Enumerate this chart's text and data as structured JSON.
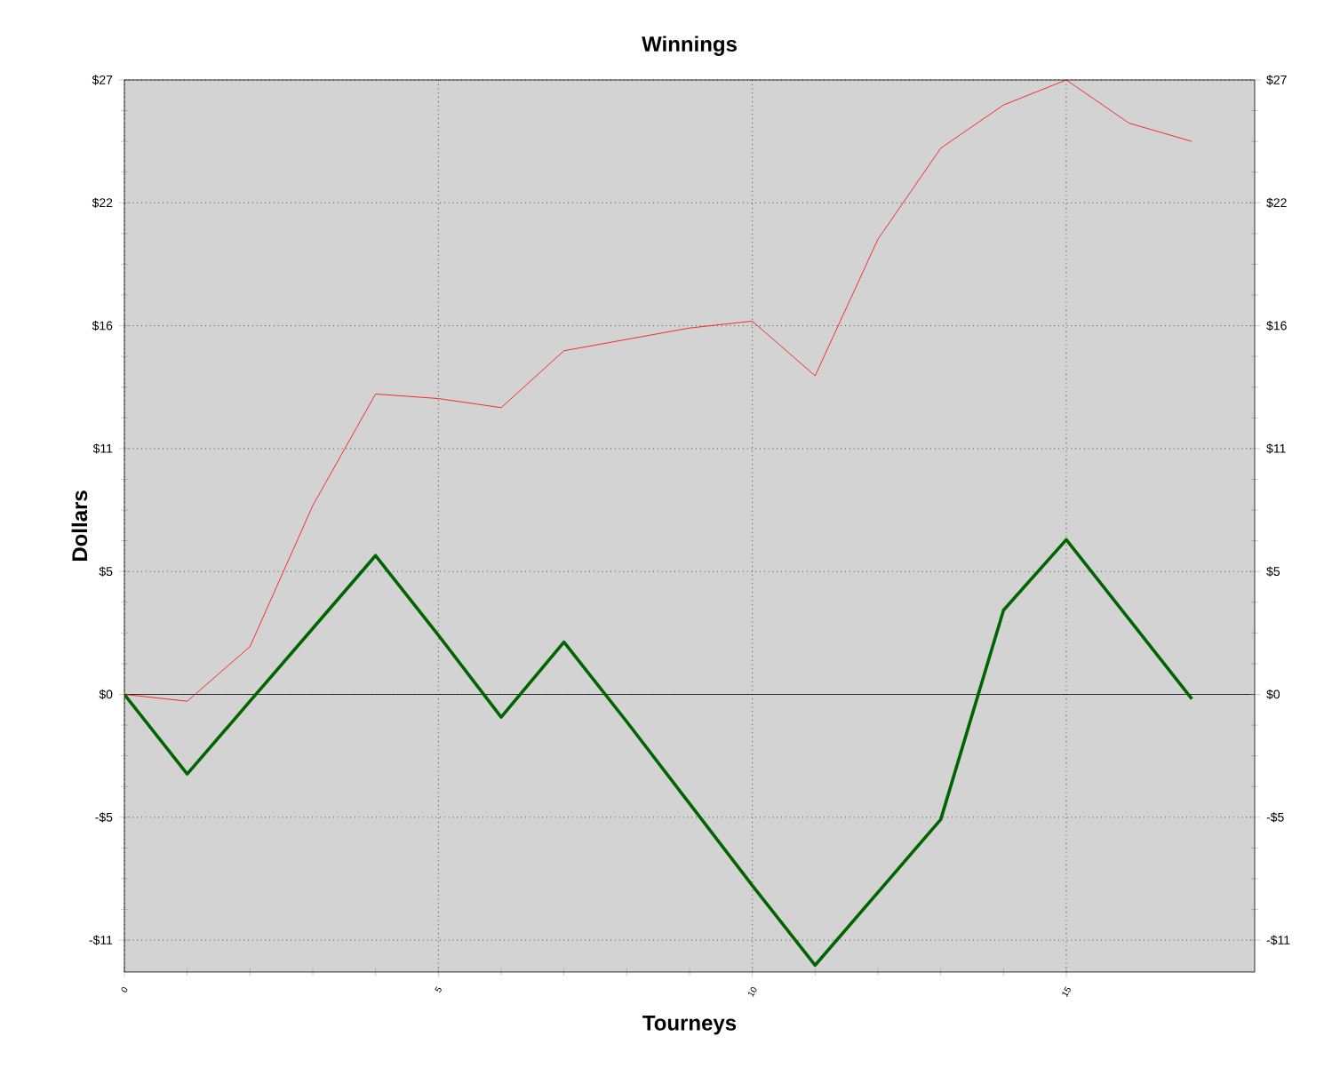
{
  "chart_data": {
    "type": "line",
    "title": "Winnings",
    "xlabel": "Tourneys",
    "ylabel": "Dollars",
    "x": [
      0,
      1,
      2,
      3,
      4,
      5,
      6,
      7,
      8,
      9,
      10,
      11,
      12,
      13,
      14,
      15,
      16,
      17
    ],
    "series": [
      {
        "color": "#ff0000",
        "values": [
          0,
          -0.3,
          2.1,
          8.3,
          13.2,
          13.0,
          12.6,
          15.1,
          15.6,
          16.1,
          16.4,
          14.0,
          20.0,
          24.0,
          25.9,
          27.0,
          25.1,
          24.3
        ]
      },
      {
        "color": "#006400",
        "values": [
          0,
          -3.5,
          -0.3,
          2.9,
          6.1,
          2.6,
          -1.0,
          2.3,
          -1.2,
          -4.8,
          -8.4,
          -11.9,
          -8.7,
          -5.5,
          3.7,
          6.8,
          3.3,
          -0.2
        ]
      }
    ],
    "xlim": [
      0,
      18
    ],
    "xticks": [
      0,
      5,
      10,
      15
    ],
    "ylim": [
      -12.2,
      27
    ],
    "yticks": [
      {
        "value": -10.8,
        "label": "-$11"
      },
      {
        "value": -5.4,
        "label": "-$5"
      },
      {
        "value": 0,
        "label": "$0"
      },
      {
        "value": 5.4,
        "label": "$5"
      },
      {
        "value": 10.8,
        "label": "$11"
      },
      {
        "value": 16.2,
        "label": "$16"
      },
      {
        "value": 21.6,
        "label": "$22"
      },
      {
        "value": 27,
        "label": "$27"
      }
    ],
    "y2lim": [
      -12.2,
      27
    ],
    "y2ticks": [
      {
        "value": -10.8,
        "label": "-$11"
      },
      {
        "value": -5.4,
        "label": "-$5"
      },
      {
        "value": 0,
        "label": "$0"
      },
      {
        "value": 5.4,
        "label": "$5"
      },
      {
        "value": 10.8,
        "label": "$11"
      },
      {
        "value": 16.2,
        "label": "$16"
      },
      {
        "value": 21.6,
        "label": "$22"
      },
      {
        "value": 27,
        "label": "$27"
      }
    ],
    "ref_lines": [
      {
        "axis": "y",
        "value": 0,
        "color": "#000000"
      }
    ],
    "grid": true,
    "marker": "none",
    "line_style": "solid"
  }
}
